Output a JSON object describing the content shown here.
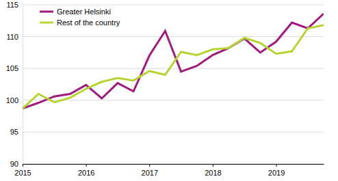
{
  "chart_data": {
    "type": "line",
    "categories": [
      "2015",
      null,
      null,
      null,
      "2016",
      null,
      null,
      null,
      "2017",
      null,
      null,
      null,
      "2018",
      null,
      null,
      null,
      "2019",
      null,
      null,
      null
    ],
    "series": [
      {
        "name": "Greater Helsinki",
        "color": "#9e1a7c",
        "values": [
          98.7,
          99.6,
          100.6,
          101.0,
          102.4,
          100.3,
          102.7,
          101.4,
          107.0,
          110.9,
          104.5,
          105.4,
          107.1,
          108.2,
          109.7,
          107.5,
          109.2,
          112.2,
          111.3,
          113.6
        ]
      },
      {
        "name": "Rest of the country",
        "color": "#b5d334",
        "values": [
          98.7,
          101.0,
          99.7,
          100.4,
          101.8,
          102.9,
          103.5,
          103.1,
          104.6,
          104.0,
          107.6,
          107.1,
          108.0,
          108.2,
          109.8,
          109.0,
          107.3,
          107.7,
          111.3,
          111.8
        ]
      }
    ],
    "ylim": [
      90,
      115
    ],
    "yticks": [
      90,
      95,
      100,
      105,
      110,
      115
    ],
    "grid": true,
    "legend": "upper left"
  }
}
